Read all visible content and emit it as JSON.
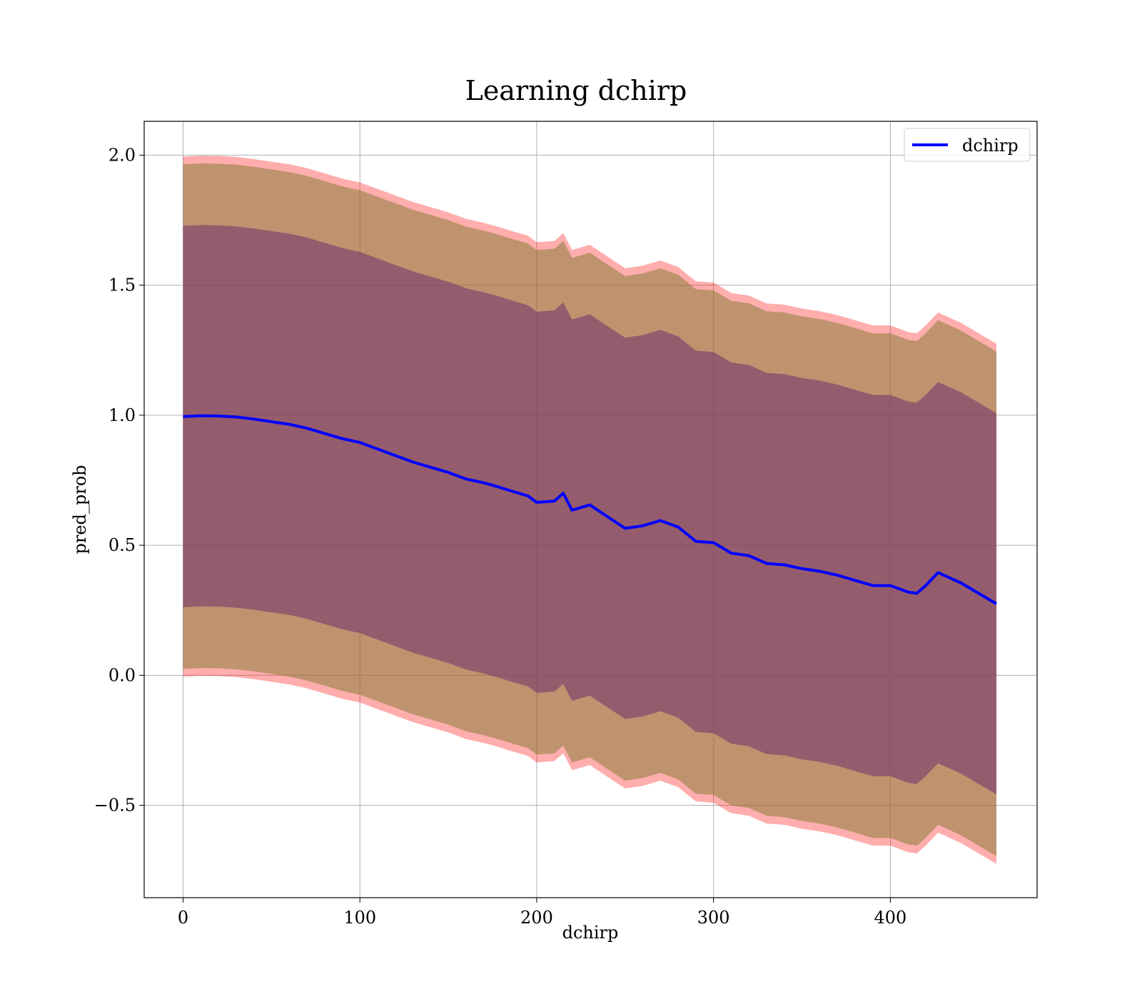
{
  "chart_data": {
    "type": "line",
    "title": "Learning dchirp",
    "xlabel": "dchirp",
    "ylabel": "pred_prob",
    "xlim": [
      -22,
      483
    ],
    "ylim": [
      -0.855,
      2.13
    ],
    "grid": true,
    "legend": {
      "placement": "top-right",
      "entries": [
        "dchirp"
      ]
    },
    "x_ticks": [
      0,
      100,
      200,
      300,
      400
    ],
    "x_tick_labels": [
      "0",
      "100",
      "200",
      "300",
      "400"
    ],
    "y_ticks": [
      -0.5,
      0.0,
      0.5,
      1.0,
      1.5,
      2.0
    ],
    "y_tick_labels": [
      "−0.5",
      "0.0",
      "0.5",
      "1.0",
      "1.5",
      "2.0"
    ],
    "colors": {
      "line": "#0000ff",
      "outer_band": "#ff0000",
      "middle_band": "#8b7d3a",
      "inner_band": "#7a3a6e",
      "grid": "#b0b0b0"
    },
    "series": [
      {
        "name": "dchirp",
        "x": [
          0,
          10,
          20,
          30,
          40,
          50,
          60,
          70,
          80,
          90,
          100,
          110,
          120,
          130,
          140,
          150,
          160,
          170,
          178,
          185,
          195,
          200,
          210,
          215,
          220,
          230,
          240,
          250,
          260,
          270,
          280,
          290,
          300,
          310,
          320,
          330,
          340,
          350,
          360,
          370,
          380,
          390,
          400,
          410,
          415,
          420,
          427,
          440,
          460
        ],
        "y": [
          0.995,
          0.998,
          0.997,
          0.993,
          0.985,
          0.975,
          0.965,
          0.95,
          0.93,
          0.91,
          0.895,
          0.87,
          0.845,
          0.82,
          0.8,
          0.78,
          0.755,
          0.74,
          0.725,
          0.71,
          0.69,
          0.665,
          0.67,
          0.7,
          0.635,
          0.655,
          0.61,
          0.565,
          0.575,
          0.595,
          0.57,
          0.515,
          0.51,
          0.47,
          0.46,
          0.43,
          0.425,
          0.41,
          0.4,
          0.385,
          0.365,
          0.345,
          0.345,
          0.32,
          0.315,
          0.345,
          0.395,
          0.355,
          0.275
        ]
      }
    ],
    "bands": [
      {
        "band": "outer",
        "half_width": 1.0
      },
      {
        "band": "middle",
        "half_width": 0.97
      },
      {
        "band": "inner",
        "half_width": 0.733
      }
    ]
  }
}
